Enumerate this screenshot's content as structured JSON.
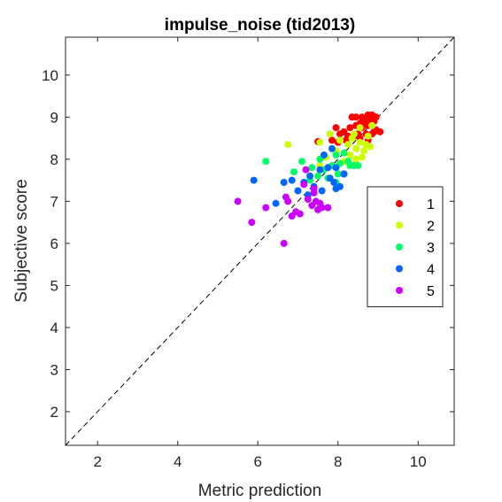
{
  "chart_data": {
    "type": "scatter",
    "title": "impulse_noise (tid2013)",
    "xlabel": "Metric prediction",
    "ylabel": "Subjective score",
    "xlim": [
      1.2,
      10.9
    ],
    "ylim": [
      1.2,
      10.9
    ],
    "xticks": [
      2,
      4,
      6,
      8,
      10
    ],
    "yticks": [
      2,
      3,
      4,
      5,
      6,
      7,
      8,
      9,
      10
    ],
    "grid": false,
    "diagonal_reference_line": true,
    "legend_position": "right",
    "series": [
      {
        "name": "1",
        "color": "#ff0000",
        "points": [
          [
            8.35,
            9.0
          ],
          [
            8.45,
            9.0
          ],
          [
            8.6,
            9.0
          ],
          [
            8.75,
            9.05
          ],
          [
            8.85,
            9.05
          ],
          [
            8.95,
            9.0
          ],
          [
            8.7,
            8.95
          ],
          [
            8.8,
            8.9
          ],
          [
            8.9,
            8.9
          ],
          [
            8.55,
            8.85
          ],
          [
            8.65,
            8.85
          ],
          [
            8.45,
            8.8
          ],
          [
            8.3,
            8.75
          ],
          [
            8.6,
            8.75
          ],
          [
            8.75,
            8.8
          ],
          [
            8.95,
            8.7
          ],
          [
            9.05,
            8.65
          ],
          [
            8.85,
            8.6
          ],
          [
            8.7,
            8.6
          ],
          [
            8.5,
            8.6
          ],
          [
            8.4,
            8.55
          ],
          [
            8.25,
            8.55
          ],
          [
            8.05,
            8.6
          ],
          [
            7.95,
            8.75
          ],
          [
            8.15,
            8.65
          ],
          [
            8.55,
            8.5
          ],
          [
            8.75,
            8.45
          ],
          [
            8.9,
            8.65
          ],
          [
            8.2,
            8.45
          ],
          [
            7.85,
            8.45
          ],
          [
            7.5,
            8.42
          ],
          [
            8.0,
            8.4
          ]
        ]
      },
      {
        "name": "2",
        "color": "#ccff00",
        "points": [
          [
            6.75,
            8.35
          ],
          [
            7.55,
            8.4
          ],
          [
            7.8,
            8.6
          ],
          [
            8.05,
            8.45
          ],
          [
            8.25,
            8.35
          ],
          [
            8.35,
            8.5
          ],
          [
            8.45,
            8.25
          ],
          [
            8.55,
            8.4
          ],
          [
            8.65,
            8.2
          ],
          [
            8.7,
            8.35
          ],
          [
            8.8,
            8.3
          ],
          [
            8.75,
            8.55
          ],
          [
            8.6,
            8.05
          ],
          [
            8.45,
            8.0
          ],
          [
            8.3,
            8.1
          ],
          [
            8.15,
            7.95
          ],
          [
            7.95,
            8.2
          ],
          [
            7.7,
            8.05
          ],
          [
            7.55,
            7.85
          ],
          [
            8.55,
            8.75
          ],
          [
            8.4,
            8.6
          ],
          [
            8.85,
            8.8
          ]
        ]
      },
      {
        "name": "3",
        "color": "#00ff66",
        "points": [
          [
            6.2,
            7.95
          ],
          [
            6.9,
            7.7
          ],
          [
            7.1,
            7.95
          ],
          [
            7.35,
            7.8
          ],
          [
            7.55,
            8.0
          ],
          [
            7.65,
            7.75
          ],
          [
            7.75,
            7.55
          ],
          [
            7.85,
            7.85
          ],
          [
            7.95,
            8.1
          ],
          [
            8.05,
            7.9
          ],
          [
            8.15,
            8.15
          ],
          [
            8.25,
            7.95
          ],
          [
            8.3,
            7.85
          ],
          [
            8.4,
            7.85
          ],
          [
            8.5,
            7.85
          ],
          [
            7.5,
            7.6
          ],
          [
            7.3,
            7.5
          ],
          [
            8.0,
            7.65
          ],
          [
            7.95,
            7.45
          ],
          [
            8.15,
            7.65
          ]
        ]
      },
      {
        "name": "4",
        "color": "#0066ff",
        "points": [
          [
            5.9,
            7.5
          ],
          [
            6.45,
            6.95
          ],
          [
            6.65,
            7.45
          ],
          [
            6.85,
            7.5
          ],
          [
            7.0,
            7.25
          ],
          [
            7.15,
            7.45
          ],
          [
            7.3,
            7.6
          ],
          [
            7.4,
            7.35
          ],
          [
            7.55,
            7.75
          ],
          [
            7.65,
            8.1
          ],
          [
            7.75,
            7.8
          ],
          [
            7.8,
            7.55
          ],
          [
            7.9,
            7.45
          ],
          [
            7.95,
            7.3
          ],
          [
            8.05,
            7.35
          ],
          [
            8.15,
            7.65
          ],
          [
            7.6,
            7.25
          ],
          [
            7.25,
            7.15
          ],
          [
            7.95,
            7.8
          ],
          [
            7.85,
            8.25
          ]
        ]
      },
      {
        "name": "5",
        "color": "#cc00ff",
        "points": [
          [
            5.5,
            7.0
          ],
          [
            5.85,
            6.5
          ],
          [
            6.2,
            6.85
          ],
          [
            6.65,
            6.0
          ],
          [
            6.7,
            7.1
          ],
          [
            6.75,
            7.0
          ],
          [
            6.85,
            6.65
          ],
          [
            6.95,
            6.75
          ],
          [
            7.05,
            6.7
          ],
          [
            7.15,
            7.4
          ],
          [
            7.2,
            7.75
          ],
          [
            7.25,
            7.05
          ],
          [
            7.35,
            6.9
          ],
          [
            7.4,
            7.3
          ],
          [
            7.45,
            7.0
          ],
          [
            7.5,
            6.8
          ],
          [
            7.55,
            6.95
          ],
          [
            7.6,
            6.85
          ],
          [
            7.75,
            6.85
          ],
          [
            7.4,
            7.2
          ]
        ]
      }
    ]
  }
}
